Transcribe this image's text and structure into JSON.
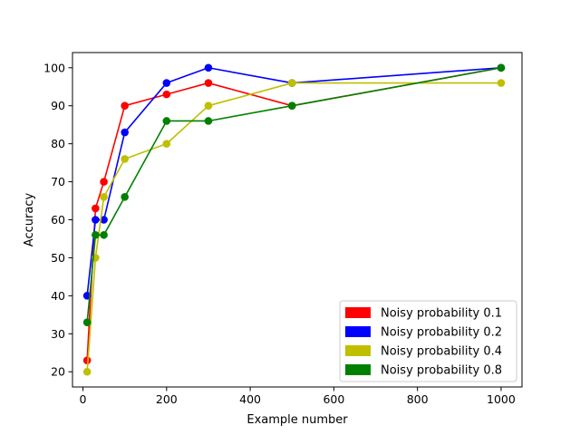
{
  "chart_data": {
    "type": "line",
    "title": "",
    "xlabel": "Example number",
    "ylabel": "Accuracy",
    "xlim": [
      -25,
      1050
    ],
    "ylim": [
      16,
      104
    ],
    "xticks": [
      0,
      200,
      400,
      600,
      800,
      1000
    ],
    "yticks": [
      20,
      30,
      40,
      50,
      60,
      70,
      80,
      90,
      100
    ],
    "x": [
      10,
      30,
      50,
      100,
      200,
      300,
      500,
      1000
    ],
    "grid": false,
    "legend_position": "lower-right",
    "series": [
      {
        "name": "Noisy probability 0.1",
        "color": "#ff0000",
        "values": [
          23,
          63,
          70,
          90,
          93,
          96,
          90,
          100
        ]
      },
      {
        "name": "Noisy probability 0.2",
        "color": "#0000ff",
        "values": [
          40,
          60,
          60,
          83,
          96,
          100,
          96,
          100
        ]
      },
      {
        "name": "Noisy probability 0.4",
        "color": "#bfbf00",
        "values": [
          20,
          50,
          66,
          76,
          80,
          90,
          96,
          96
        ]
      },
      {
        "name": "Noisy probability 0.8",
        "color": "#008000",
        "values": [
          33,
          56,
          56,
          66,
          86,
          86,
          90,
          100
        ]
      }
    ]
  }
}
